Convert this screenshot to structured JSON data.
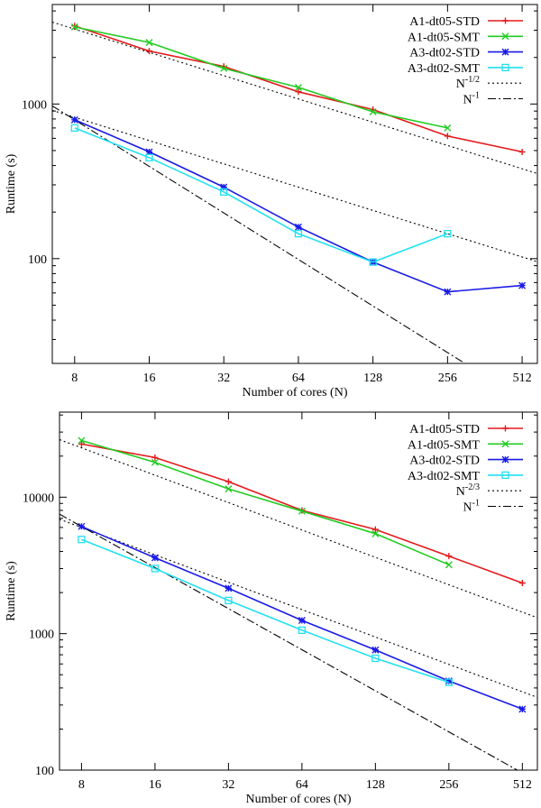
{
  "chart_data": [
    {
      "type": "line",
      "log_x": true,
      "log_y": true,
      "x": [
        8,
        16,
        32,
        64,
        128,
        256,
        512
      ],
      "xticks": [
        "8",
        "16",
        "32",
        "64",
        "128",
        "256",
        "512"
      ],
      "xlim": [
        6.5,
        590
      ],
      "ylim": [
        21,
        4400
      ],
      "yticks": [
        "100",
        "1000"
      ],
      "yticks_values": [
        100,
        1000
      ],
      "xlabel": "Number of cores (N)",
      "ylabel": "Runtime (s)",
      "legend_position": "top-right",
      "series": [
        {
          "name": "A1-dt05-STD",
          "color": "#e41a1c",
          "marker": "plus",
          "x": [
            8,
            16,
            32,
            64,
            128,
            256,
            512
          ],
          "values": [
            3200,
            2200,
            1750,
            1200,
            920,
            620,
            490
          ]
        },
        {
          "name": "A1-dt05-SMT",
          "color": "#22cc22",
          "marker": "cross",
          "x": [
            8,
            16,
            32,
            64,
            128,
            256
          ],
          "values": [
            3150,
            2500,
            1700,
            1280,
            890,
            700
          ]
        },
        {
          "name": "A3-dt02-STD",
          "color": "#1a1ae6",
          "marker": "star",
          "x": [
            8,
            16,
            32,
            64,
            128,
            256,
            512
          ],
          "values": [
            790,
            490,
            290,
            160,
            95,
            61,
            67
          ]
        },
        {
          "name": "A3-dt02-SMT",
          "color": "#22e0f0",
          "marker": "box",
          "x": [
            8,
            16,
            32,
            64,
            128,
            256
          ],
          "values": [
            700,
            450,
            270,
            145,
            95,
            145
          ]
        }
      ],
      "reference_lines": [
        {
          "name": "N",
          "exponent_label": "-1/2",
          "style": "dotted",
          "slope": -0.5,
          "lines": [
            {
              "x0": 8,
              "y0": 3050
            },
            {
              "x0": 8,
              "y0": 820
            }
          ]
        },
        {
          "name": "N",
          "exponent_label": "-1",
          "style": "dashdot",
          "slope": -1,
          "lines": [
            {
              "x0": 8,
              "y0": 790
            }
          ]
        }
      ]
    },
    {
      "type": "line",
      "log_x": true,
      "log_y": true,
      "x": [
        8,
        16,
        32,
        64,
        128,
        256,
        512
      ],
      "xticks": [
        "8",
        "16",
        "32",
        "64",
        "128",
        "256",
        "512"
      ],
      "xlim": [
        6.5,
        590
      ],
      "ylim": [
        100,
        42000
      ],
      "yticks": [
        "100",
        "1000",
        "10000"
      ],
      "yticks_values": [
        100,
        1000,
        10000
      ],
      "xlabel": "Number of cores (N)",
      "ylabel": "Runtime (s)",
      "legend_position": "top-right",
      "series": [
        {
          "name": "A1-dt05-STD",
          "color": "#e41a1c",
          "marker": "plus",
          "x": [
            8,
            16,
            32,
            64,
            128,
            256,
            512
          ],
          "values": [
            24500,
            19500,
            13000,
            8000,
            5800,
            3700,
            2350
          ]
        },
        {
          "name": "A1-dt05-SMT",
          "color": "#22cc22",
          "marker": "cross",
          "x": [
            8,
            16,
            32,
            64,
            128,
            256
          ],
          "values": [
            26000,
            18000,
            11500,
            7900,
            5400,
            3200
          ]
        },
        {
          "name": "A3-dt02-STD",
          "color": "#1a1ae6",
          "marker": "star",
          "x": [
            8,
            16,
            32,
            64,
            128,
            256,
            512
          ],
          "values": [
            6100,
            3600,
            2150,
            1250,
            760,
            450,
            280
          ]
        },
        {
          "name": "A3-dt02-SMT",
          "color": "#22e0f0",
          "marker": "box",
          "x": [
            8,
            16,
            32,
            64,
            128,
            256
          ],
          "values": [
            4900,
            3000,
            1750,
            1060,
            660,
            440
          ]
        }
      ],
      "reference_lines": [
        {
          "name": "N",
          "exponent_label": "-2/3",
          "style": "dotted",
          "slope": -0.6667,
          "lines": [
            {
              "x0": 8,
              "y0": 23000
            },
            {
              "x0": 8,
              "y0": 6000
            }
          ]
        },
        {
          "name": "N",
          "exponent_label": "-1",
          "style": "dashdot",
          "slope": -1,
          "lines": [
            {
              "x0": 8,
              "y0": 6100
            }
          ]
        }
      ]
    }
  ]
}
